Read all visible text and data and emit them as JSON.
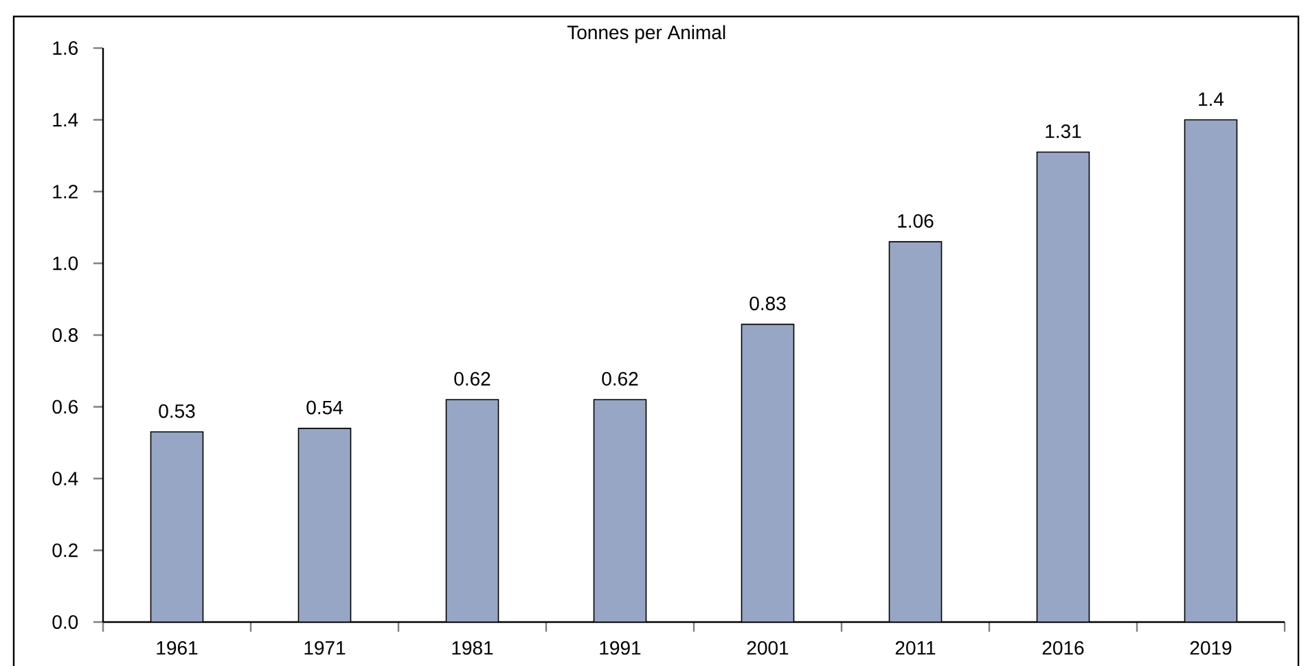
{
  "chart_data": {
    "type": "bar",
    "title": "Tonnes per Animal",
    "categories": [
      "1961",
      "1971",
      "1981",
      "1991",
      "2001",
      "2011",
      "2016",
      "2019"
    ],
    "values": [
      0.53,
      0.54,
      0.62,
      0.62,
      0.83,
      1.06,
      1.31,
      1.4
    ],
    "value_labels": [
      "0.53",
      "0.54",
      "0.62",
      "0.62",
      "0.83",
      "1.06",
      "1.31",
      "1.4"
    ],
    "color": "#97a6c4",
    "ylim": [
      0,
      1.6
    ],
    "yticks": [
      {
        "value": 0,
        "label": "0.0"
      },
      0.2,
      0.4,
      0.6,
      0.8,
      {
        "value": 1.0,
        "label": "1.0"
      },
      1.2,
      1.4,
      1.6
    ],
    "grid": false
  }
}
